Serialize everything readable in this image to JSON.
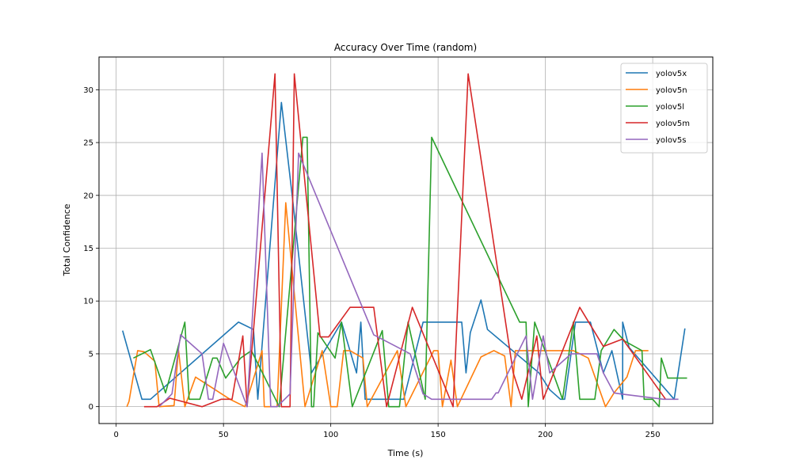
{
  "chart_data": {
    "type": "line",
    "title": "Accuracy Over Time (random)",
    "xlabel": "Time (s)",
    "ylabel": "Total Confidence",
    "xlim": [
      -8,
      278
    ],
    "ylim": [
      -1.6,
      33.1
    ],
    "xticks": [
      0,
      50,
      100,
      150,
      200,
      250
    ],
    "yticks": [
      0,
      5,
      10,
      15,
      20,
      25,
      30
    ],
    "grid": true,
    "legend_position": "top-right",
    "series": [
      {
        "name": "yolov5x",
        "color": "#1f77b4",
        "points": [
          [
            3,
            7.2
          ],
          [
            12,
            0.7
          ],
          [
            16,
            0.7
          ],
          [
            57,
            8
          ],
          [
            64,
            7.3
          ],
          [
            66,
            0.7
          ],
          [
            77,
            28.8
          ],
          [
            82,
            20
          ],
          [
            91,
            3.2
          ],
          [
            105,
            8
          ],
          [
            112,
            3.2
          ],
          [
            114,
            8
          ],
          [
            116,
            0.7
          ],
          [
            130,
            0.7
          ],
          [
            134,
            0.7
          ],
          [
            143,
            8
          ],
          [
            161,
            8
          ],
          [
            163,
            3.2
          ],
          [
            165,
            7
          ],
          [
            170,
            10.1
          ],
          [
            173,
            7.3
          ],
          [
            197,
            3.2
          ],
          [
            202,
            1.6
          ],
          [
            207,
            0.7
          ],
          [
            209,
            0.7
          ],
          [
            214,
            8
          ],
          [
            221,
            8
          ],
          [
            227,
            3.2
          ],
          [
            231,
            5.3
          ],
          [
            236,
            0.7
          ],
          [
            236,
            8
          ],
          [
            239,
            5.6
          ],
          [
            260,
            0.7
          ],
          [
            265,
            7.4
          ]
        ]
      },
      {
        "name": "yolov5n",
        "color": "#ff7f0e",
        "points": [
          [
            5,
            0
          ],
          [
            6,
            0.5
          ],
          [
            10,
            5.3
          ],
          [
            13,
            5.2
          ],
          [
            18,
            4.3
          ],
          [
            20,
            0
          ],
          [
            27,
            0.1
          ],
          [
            29,
            5.4
          ],
          [
            32,
            0
          ],
          [
            37,
            2.8
          ],
          [
            53,
            0.7
          ],
          [
            60,
            0
          ],
          [
            68,
            5.3
          ],
          [
            69,
            0
          ],
          [
            75,
            0
          ],
          [
            79,
            19.3
          ],
          [
            88,
            0
          ],
          [
            96,
            5.3
          ],
          [
            100,
            0
          ],
          [
            103,
            0
          ],
          [
            106,
            5.3
          ],
          [
            109,
            5.3
          ],
          [
            115,
            4.6
          ],
          [
            117,
            0
          ],
          [
            131,
            5.3
          ],
          [
            135,
            0
          ],
          [
            148,
            5.3
          ],
          [
            150,
            5.3
          ],
          [
            152,
            0
          ],
          [
            156,
            4.4
          ],
          [
            159,
            0
          ],
          [
            170,
            4.7
          ],
          [
            176,
            5.3
          ],
          [
            181,
            4.8
          ],
          [
            184,
            0
          ],
          [
            186,
            5.3
          ],
          [
            213,
            5.3
          ],
          [
            220,
            4.6
          ],
          [
            228,
            0
          ],
          [
            232,
            1.3
          ],
          [
            238,
            2.8
          ],
          [
            242,
            5.3
          ],
          [
            248,
            5.3
          ]
        ]
      },
      {
        "name": "yolov5l",
        "color": "#2ca02c",
        "points": [
          [
            8,
            4.6
          ],
          [
            16,
            5.4
          ],
          [
            23,
            1.3
          ],
          [
            32,
            8
          ],
          [
            34,
            0.7
          ],
          [
            39,
            0.7
          ],
          [
            45,
            4.6
          ],
          [
            47,
            4.6
          ],
          [
            51,
            2.7
          ],
          [
            58,
            4.6
          ],
          [
            63,
            5.3
          ],
          [
            76,
            0
          ],
          [
            87,
            25.5
          ],
          [
            89,
            25.5
          ],
          [
            91,
            0
          ],
          [
            92,
            0
          ],
          [
            94,
            7
          ],
          [
            102,
            4.6
          ],
          [
            105,
            8
          ],
          [
            110,
            0
          ],
          [
            124,
            7.2
          ],
          [
            127,
            0
          ],
          [
            132,
            0
          ],
          [
            136,
            8
          ],
          [
            144,
            0.7
          ],
          [
            147,
            25.5
          ],
          [
            188,
            8
          ],
          [
            191,
            8
          ],
          [
            192,
            0
          ],
          [
            195,
            8
          ],
          [
            208,
            0.7
          ],
          [
            213,
            8
          ],
          [
            216,
            0.7
          ],
          [
            223,
            0.7
          ],
          [
            226,
            5.3
          ],
          [
            232,
            7.3
          ],
          [
            237,
            6.2
          ],
          [
            245,
            5.3
          ],
          [
            246,
            0.7
          ],
          [
            250,
            0.7
          ],
          [
            253,
            0
          ],
          [
            254,
            4.6
          ],
          [
            257,
            2.7
          ],
          [
            263,
            2.7
          ],
          [
            266,
            2.7
          ]
        ]
      },
      {
        "name": "yolov5m",
        "color": "#d62728",
        "points": [
          [
            13,
            0
          ],
          [
            19,
            0
          ],
          [
            25,
            0.8
          ],
          [
            40,
            0
          ],
          [
            49,
            0.7
          ],
          [
            54,
            0.7
          ],
          [
            59,
            6.7
          ],
          [
            61,
            0
          ],
          [
            74,
            31.5
          ],
          [
            77,
            0
          ],
          [
            81,
            0
          ],
          [
            83,
            31.5
          ],
          [
            95,
            6.6
          ],
          [
            99,
            6.6
          ],
          [
            109,
            9.4
          ],
          [
            120,
            9.4
          ],
          [
            126,
            0
          ],
          [
            138,
            9.4
          ],
          [
            157,
            0
          ],
          [
            164,
            31.5
          ],
          [
            185,
            3.2
          ],
          [
            189,
            0.7
          ],
          [
            196,
            6.7
          ],
          [
            199,
            0.7
          ],
          [
            216,
            9.4
          ],
          [
            227,
            5.7
          ],
          [
            236,
            6.4
          ],
          [
            256,
            0.7
          ]
        ]
      },
      {
        "name": "yolov5s",
        "color": "#9467bd",
        "points": [
          [
            20,
            0
          ],
          [
            26,
            1.2
          ],
          [
            30,
            6.8
          ],
          [
            40,
            5
          ],
          [
            43,
            0.7
          ],
          [
            45,
            0.7
          ],
          [
            50,
            6
          ],
          [
            61,
            0
          ],
          [
            68,
            24
          ],
          [
            72,
            0
          ],
          [
            75,
            0
          ],
          [
            81,
            1.2
          ],
          [
            85,
            24
          ],
          [
            120,
            6.8
          ],
          [
            137,
            5
          ],
          [
            143,
            1.2
          ],
          [
            147,
            0.7
          ],
          [
            175,
            0.7
          ],
          [
            177,
            1.3
          ],
          [
            178,
            1.3
          ],
          [
            191,
            6.7
          ],
          [
            194,
            0.7
          ],
          [
            199,
            6.7
          ],
          [
            202,
            3.2
          ],
          [
            212,
            5
          ],
          [
            224,
            5
          ],
          [
            227,
            3.2
          ],
          [
            232,
            1.3
          ],
          [
            235,
            1.2
          ],
          [
            255,
            0.7
          ],
          [
            262,
            0.7
          ]
        ]
      }
    ]
  }
}
